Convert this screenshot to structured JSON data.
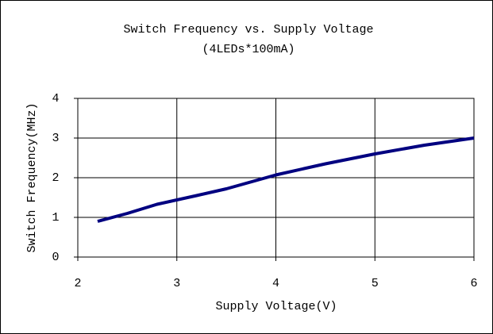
{
  "chart_data": {
    "type": "line",
    "title": "Switch Frequency vs. Supply Voltage",
    "subtitle": "(4LEDs*100mA)",
    "x_label": "Supply Voltage(V)",
    "y_label": "Switch Frequency(MHz)",
    "x": [
      2.2,
      2.5,
      2.8,
      3.2,
      3.5,
      3.8,
      4.0,
      4.5,
      5.0,
      5.5,
      6.0
    ],
    "series": [
      {
        "name": "Switch Frequency",
        "color": "#000080",
        "values": [
          0.9,
          1.1,
          1.33,
          1.55,
          1.72,
          1.93,
          2.07,
          2.35,
          2.6,
          2.82,
          3.0
        ]
      }
    ],
    "xlim": [
      2,
      6
    ],
    "xticks": [
      2,
      3,
      4,
      5,
      6
    ],
    "ylim": [
      0,
      4
    ],
    "yticks": [
      0,
      1,
      2,
      3,
      4
    ],
    "grid": true,
    "legend": false
  }
}
